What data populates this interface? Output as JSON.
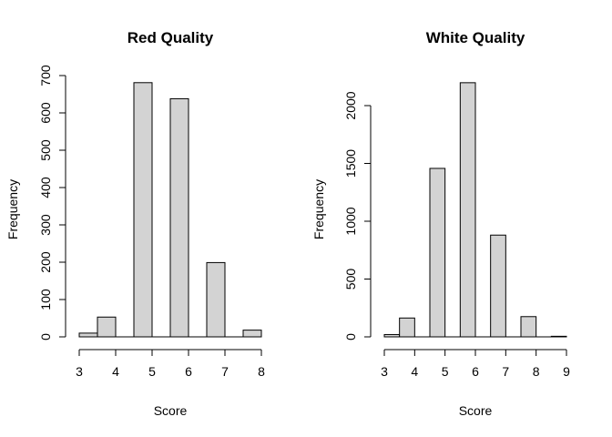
{
  "chart_data": [
    {
      "type": "bar",
      "title": "Red Quality",
      "xlabel": "Score",
      "ylabel": "Frequency",
      "bins": [
        [
          3,
          3.5
        ],
        [
          3.5,
          4
        ],
        [
          4,
          4.5
        ],
        [
          4.5,
          5
        ],
        [
          5,
          5.5
        ],
        [
          5.5,
          6
        ],
        [
          6,
          6.5
        ],
        [
          6.5,
          7
        ],
        [
          7,
          7.5
        ],
        [
          7.5,
          8
        ]
      ],
      "values": [
        10,
        53,
        0,
        681,
        0,
        638,
        0,
        199,
        0,
        18
      ],
      "xlim": [
        3,
        8
      ],
      "ylim": [
        0,
        700
      ],
      "xticks": [
        3,
        4,
        5,
        6,
        7,
        8
      ],
      "yticks": [
        0,
        100,
        200,
        300,
        400,
        500,
        600,
        700
      ]
    },
    {
      "type": "bar",
      "title": "White Quality",
      "xlabel": "Score",
      "ylabel": "Frequency",
      "bins": [
        [
          3,
          3.5
        ],
        [
          3.5,
          4
        ],
        [
          4,
          4.5
        ],
        [
          4.5,
          5
        ],
        [
          5,
          5.5
        ],
        [
          5.5,
          6
        ],
        [
          6,
          6.5
        ],
        [
          6.5,
          7
        ],
        [
          7,
          7.5
        ],
        [
          7.5,
          8
        ],
        [
          8,
          8.5
        ],
        [
          8.5,
          9
        ]
      ],
      "values": [
        20,
        163,
        0,
        1457,
        0,
        2198,
        0,
        880,
        0,
        175,
        0,
        5
      ],
      "xlim": [
        3,
        9
      ],
      "ylim": [
        0,
        2000
      ],
      "xticks": [
        3,
        4,
        5,
        6,
        7,
        8,
        9
      ],
      "yticks": [
        0,
        500,
        1000,
        1500,
        2000
      ]
    }
  ]
}
